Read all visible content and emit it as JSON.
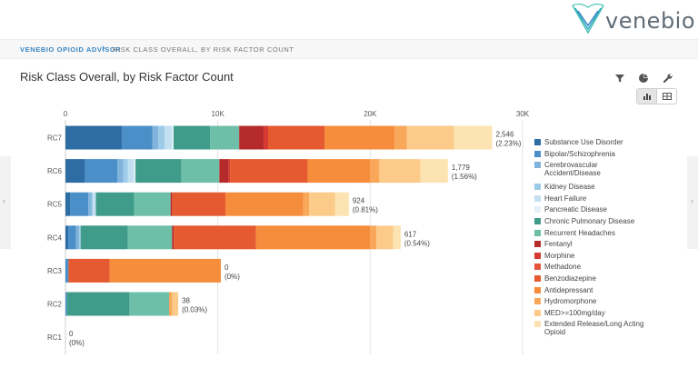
{
  "brand": {
    "name": "venebio"
  },
  "breadcrumb": {
    "root": "VENEBIO OPIOID ADVISOR",
    "separator": "›",
    "current": "RISK CLASS OVERALL, BY RISK FACTOR COUNT"
  },
  "page": {
    "title": "Risk Class Overall, by Risk Factor Count"
  },
  "toolbar": {
    "icons": [
      "filter-icon",
      "pie-chart-icon",
      "wrench-icon",
      "bar-chart-icon",
      "table-icon"
    ],
    "active_view": "bar-chart"
  },
  "nav": {
    "left_arrow": "‹",
    "right_arrow": "›"
  },
  "chart_data": {
    "type": "bar",
    "orientation": "horizontal",
    "stacked": true,
    "title": "",
    "xlabel": "",
    "ylabel": "",
    "xlim": [
      0,
      30000
    ],
    "x_ticks": [
      0,
      10000,
      20000,
      30000
    ],
    "x_tick_labels": [
      "0",
      "10K",
      "20K",
      "30K"
    ],
    "grid": true,
    "legend_position": "right",
    "categories": [
      "RC7",
      "RC6",
      "RC5",
      "RC4",
      "RC3",
      "RC2",
      "RC1"
    ],
    "totals": [
      {
        "count": "2,546",
        "pct": "(2.23%)"
      },
      {
        "count": "1,779",
        "pct": "(1.56%)"
      },
      {
        "count": "924",
        "pct": "(0.81%)"
      },
      {
        "count": "617",
        "pct": "(0.54%)"
      },
      {
        "count": "0",
        "pct": "(0%)"
      },
      {
        "count": "38",
        "pct": "(0.03%)"
      },
      {
        "count": "0",
        "pct": "(0%)"
      }
    ],
    "series": [
      {
        "name": "Substance Use Disorder",
        "color": "#2e6da4",
        "values": [
          3700,
          1300,
          300,
          200,
          0,
          0,
          0
        ]
      },
      {
        "name": "Bipolar/Schizophrenia",
        "color": "#4a8fc7",
        "values": [
          2000,
          2100,
          1200,
          500,
          200,
          100,
          0
        ]
      },
      {
        "name": "Cerebrovascular Accident/Disease",
        "color": "#80b4dc",
        "values": [
          400,
          400,
          200,
          200,
          0,
          0,
          0
        ]
      },
      {
        "name": "Kidney Disease",
        "color": "#9ecbe8",
        "values": [
          400,
          300,
          100,
          100,
          0,
          0,
          0
        ]
      },
      {
        "name": "Heart Failure",
        "color": "#c3e0f2",
        "values": [
          500,
          400,
          200,
          0,
          0,
          0,
          0
        ]
      },
      {
        "name": "Pancreatic Disease",
        "color": "#e4f1f8",
        "values": [
          100,
          100,
          0,
          0,
          0,
          0,
          0
        ]
      },
      {
        "name": "Chronic Pulmonary Disease",
        "color": "#3f9b8a",
        "values": [
          2400,
          3000,
          2500,
          3100,
          0,
          4100,
          0
        ]
      },
      {
        "name": "Recurrent Headaches",
        "color": "#6dbfa8",
        "values": [
          1900,
          2500,
          2400,
          2900,
          0,
          2600,
          0
        ]
      },
      {
        "name": "Fentanyl",
        "color": "#b52a2a",
        "values": [
          1600,
          600,
          100,
          100,
          0,
          0,
          0
        ]
      },
      {
        "name": "Morphine",
        "color": "#d63a32",
        "values": [
          300,
          100,
          0,
          0,
          0,
          0,
          0
        ]
      },
      {
        "name": "Methadone",
        "color": "#e4533a",
        "values": [
          0,
          0,
          0,
          0,
          0,
          0,
          0
        ]
      },
      {
        "name": "Benzodiazepine",
        "color": "#e55a30",
        "values": [
          3700,
          5100,
          3500,
          5400,
          2700,
          0,
          0
        ]
      },
      {
        "name": "Antidepressant",
        "color": "#f68d3d",
        "values": [
          4600,
          4100,
          5100,
          7500,
          7300,
          0,
          0
        ]
      },
      {
        "name": "Hydromorphone",
        "color": "#f9a85a",
        "values": [
          800,
          600,
          400,
          400,
          0,
          200,
          0
        ]
      },
      {
        "name": "MED>=100mg/day",
        "color": "#fccb8a",
        "values": [
          3100,
          2700,
          1700,
          1100,
          0,
          400,
          0
        ]
      },
      {
        "name": "Extended Release/Long Acting Opioid",
        "color": "#fde3b1",
        "values": [
          2500,
          1800,
          900,
          500,
          0,
          0,
          0
        ]
      }
    ]
  }
}
